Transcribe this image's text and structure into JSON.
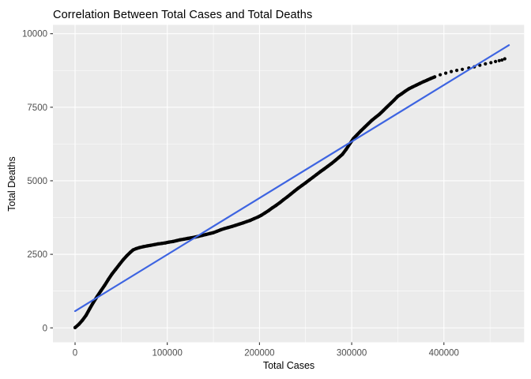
{
  "title": "Correlation Between Total Cases and Total Deaths",
  "chart_data": {
    "type": "scatter",
    "title": "Correlation Between Total Cases and Total Deaths",
    "xlabel": "Total Cases",
    "ylabel": "Total Deaths",
    "xlim": [
      -24000,
      487000
    ],
    "ylim": [
      -490,
      10300
    ],
    "x_ticks": [
      0,
      100000,
      200000,
      300000,
      400000
    ],
    "x_tick_labels": [
      "0",
      "100000",
      "200000",
      "300000",
      "400000"
    ],
    "x_minor_ticks": [
      50000,
      150000,
      250000,
      350000,
      450000
    ],
    "y_ticks": [
      0,
      2500,
      5000,
      7500,
      10000
    ],
    "y_tick_labels": [
      "0",
      "2500",
      "5000",
      "7500",
      "10000"
    ],
    "y_minor_ticks": [
      1250,
      3750,
      6250,
      8750
    ],
    "grid": true,
    "legend": "none",
    "theme": {
      "panel_bg": "#EBEBEB",
      "grid_color": "#FFFFFF",
      "point_color": "#000000",
      "trend_color": "#3D64E1",
      "tick_mark_color": "#333333",
      "tick_text_color": "#4D4D4D"
    },
    "series": [
      {
        "name": "observations",
        "type": "points",
        "dense_band_max_x": 392000,
        "points": [
          [
            0,
            10
          ],
          [
            4000,
            120
          ],
          [
            8000,
            260
          ],
          [
            12000,
            430
          ],
          [
            16000,
            660
          ],
          [
            20000,
            870
          ],
          [
            24000,
            1070
          ],
          [
            28000,
            1260
          ],
          [
            32000,
            1440
          ],
          [
            36000,
            1640
          ],
          [
            40000,
            1830
          ],
          [
            44000,
            1990
          ],
          [
            48000,
            2150
          ],
          [
            52000,
            2310
          ],
          [
            56000,
            2450
          ],
          [
            60000,
            2570
          ],
          [
            63000,
            2650
          ],
          [
            66000,
            2690
          ],
          [
            70000,
            2730
          ],
          [
            74000,
            2760
          ],
          [
            78000,
            2785
          ],
          [
            82000,
            2805
          ],
          [
            86000,
            2830
          ],
          [
            90000,
            2855
          ],
          [
            94000,
            2870
          ],
          [
            98000,
            2890
          ],
          [
            102000,
            2915
          ],
          [
            106000,
            2935
          ],
          [
            110000,
            2965
          ],
          [
            114000,
            2995
          ],
          [
            118000,
            3015
          ],
          [
            122000,
            3040
          ],
          [
            126000,
            3060
          ],
          [
            130000,
            3085
          ],
          [
            134000,
            3115
          ],
          [
            138000,
            3145
          ],
          [
            142000,
            3175
          ],
          [
            146000,
            3205
          ],
          [
            150000,
            3235
          ],
          [
            154000,
            3285
          ],
          [
            158000,
            3335
          ],
          [
            162000,
            3375
          ],
          [
            166000,
            3410
          ],
          [
            170000,
            3445
          ],
          [
            174000,
            3485
          ],
          [
            178000,
            3525
          ],
          [
            182000,
            3565
          ],
          [
            186000,
            3610
          ],
          [
            190000,
            3655
          ],
          [
            194000,
            3710
          ],
          [
            198000,
            3765
          ],
          [
            202000,
            3830
          ],
          [
            206000,
            3910
          ],
          [
            210000,
            3990
          ],
          [
            214000,
            4080
          ],
          [
            218000,
            4165
          ],
          [
            222000,
            4255
          ],
          [
            226000,
            4355
          ],
          [
            230000,
            4450
          ],
          [
            234000,
            4550
          ],
          [
            238000,
            4650
          ],
          [
            242000,
            4750
          ],
          [
            246000,
            4840
          ],
          [
            250000,
            4930
          ],
          [
            254000,
            5025
          ],
          [
            258000,
            5120
          ],
          [
            262000,
            5215
          ],
          [
            266000,
            5310
          ],
          [
            270000,
            5400
          ],
          [
            274000,
            5490
          ],
          [
            278000,
            5585
          ],
          [
            282000,
            5685
          ],
          [
            286000,
            5790
          ],
          [
            290000,
            5900
          ],
          [
            294000,
            6070
          ],
          [
            298000,
            6260
          ],
          [
            302000,
            6440
          ],
          [
            306000,
            6570
          ],
          [
            310000,
            6700
          ],
          [
            314000,
            6820
          ],
          [
            318000,
            6940
          ],
          [
            322000,
            7060
          ],
          [
            326000,
            7160
          ],
          [
            330000,
            7260
          ],
          [
            334000,
            7380
          ],
          [
            338000,
            7500
          ],
          [
            342000,
            7620
          ],
          [
            346000,
            7745
          ],
          [
            350000,
            7870
          ],
          [
            354000,
            7955
          ],
          [
            358000,
            8045
          ],
          [
            362000,
            8125
          ],
          [
            366000,
            8190
          ],
          [
            370000,
            8250
          ],
          [
            374000,
            8310
          ],
          [
            378000,
            8370
          ],
          [
            382000,
            8425
          ],
          [
            386000,
            8480
          ],
          [
            390000,
            8530
          ],
          [
            396000,
            8605
          ],
          [
            402000,
            8660
          ],
          [
            408000,
            8715
          ],
          [
            414000,
            8755
          ],
          [
            420000,
            8790
          ],
          [
            427000,
            8835
          ],
          [
            433000,
            8875
          ],
          [
            439000,
            8925
          ],
          [
            445000,
            8975
          ],
          [
            451000,
            9015
          ],
          [
            456000,
            9055
          ],
          [
            460000,
            9085
          ],
          [
            463000,
            9105
          ],
          [
            466000,
            9145
          ]
        ]
      },
      {
        "name": "linear-fit",
        "type": "line",
        "x": [
          0,
          470500
        ],
        "y": [
          570,
          9610
        ]
      }
    ]
  }
}
